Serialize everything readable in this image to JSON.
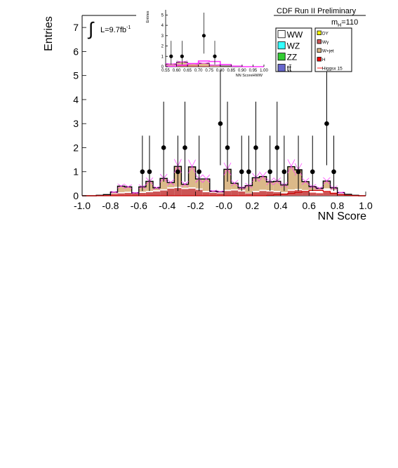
{
  "header": {
    "title": "CDF Run II Preliminary",
    "luminosity": "L=9.7fb",
    "luminosity_sup": "-1",
    "mass_label_main": "m",
    "mass_label_sub": "H",
    "mass_label_value": "=110"
  },
  "legend": {
    "left": [
      {
        "label": "WW",
        "color": "#ffffff"
      },
      {
        "label": "WZ",
        "color": "#33ffff"
      },
      {
        "label": "ZZ",
        "color": "#33cc33"
      },
      {
        "label": "tt̄",
        "color": "#6666cc"
      }
    ],
    "right": [
      {
        "label": "DY",
        "color": "#ffff00"
      },
      {
        "label": "Wγ",
        "color": "#cc5555"
      },
      {
        "label": "W+jet",
        "color": "#dbb989"
      },
      {
        "label": "H",
        "color": "#ff0000"
      },
      {
        "label": "Higgsx 15",
        "color": "#ff2222",
        "line": true
      }
    ]
  },
  "chart_data": [
    {
      "type": "bar",
      "title": "",
      "xlabel": "NN Score",
      "ylabel": "Entries",
      "xlim": [
        -1.0,
        1.0
      ],
      "ylim": [
        0,
        7.5
      ],
      "x_ticks": [
        "-1.0",
        "-0.8",
        "-0.6",
        "-0.4",
        "-0.2",
        "-0.0",
        "0.2",
        "0.4",
        "0.6",
        "0.8",
        "1.0"
      ],
      "x_tick_values": [
        -1.0,
        -0.8,
        -0.6,
        -0.4,
        -0.2,
        0.0,
        0.2,
        0.4,
        0.6,
        0.8,
        1.0
      ],
      "y_ticks": [
        "0",
        "1",
        "2",
        "3",
        "4",
        "5",
        "6",
        "7"
      ],
      "y_tick_values": [
        0,
        1,
        2,
        3,
        4,
        5,
        6,
        7
      ],
      "bin_edges": [
        -1.0,
        -0.95,
        -0.9,
        -0.85,
        -0.8,
        -0.75,
        -0.7,
        -0.65,
        -0.6,
        -0.55,
        -0.5,
        -0.45,
        -0.4,
        -0.35,
        -0.3,
        -0.25,
        -0.2,
        -0.15,
        -0.1,
        -0.05,
        0.0,
        0.05,
        0.1,
        0.15,
        0.2,
        0.25,
        0.3,
        0.35,
        0.4,
        0.45,
        0.5,
        0.55,
        0.6,
        0.65,
        0.7,
        0.75,
        0.8,
        0.85,
        0.9,
        0.95,
        1.0
      ],
      "series": [
        {
          "name": "Wγ",
          "color": "#cc5555",
          "values": [
            0,
            0,
            0.02,
            0.05,
            0.08,
            0.1,
            0.12,
            0.1,
            0.12,
            0.15,
            0.18,
            0.22,
            0.3,
            0.32,
            0.28,
            0.3,
            0.25,
            0.15,
            0.12,
            0.1,
            0.2,
            0.22,
            0.18,
            0.1,
            0.15,
            0.2,
            0.18,
            0.15,
            0.1,
            0.2,
            0.22,
            0.18,
            0.12,
            0.1,
            0.15,
            0.12,
            0.08,
            0.04,
            0.02,
            0
          ]
        },
        {
          "name": "H",
          "color": "#ff0000",
          "values": [
            0,
            0,
            0,
            0,
            0,
            0,
            0,
            0,
            0,
            0,
            0,
            0,
            0,
            0,
            0,
            0,
            0,
            0,
            0,
            0,
            0,
            0,
            0,
            0,
            0,
            0,
            0,
            0,
            0,
            0.01,
            0.01,
            0.01,
            0.01,
            0.01,
            0.01,
            0.01,
            0,
            0,
            0,
            0
          ]
        },
        {
          "name": "WW",
          "color": "#ffffff",
          "values": [
            0,
            0,
            0,
            0,
            0.02,
            0.05,
            0.05,
            0.02,
            0.05,
            0.05,
            0.05,
            0.05,
            0.05,
            0.05,
            0.05,
            0.05,
            0.05,
            0.05,
            0.02,
            0.02,
            0.05,
            0.05,
            0.05,
            0.02,
            0.05,
            0.05,
            0.05,
            0.05,
            0.05,
            0.05,
            0.05,
            0.05,
            0.1,
            0.1,
            0.15,
            0.12,
            0.05,
            0.02,
            0,
            0
          ]
        },
        {
          "name": "W+jet",
          "color": "#dbb989",
          "values": [
            0,
            0,
            0,
            0,
            0.05,
            0.25,
            0.2,
            0,
            0.2,
            0.4,
            0.1,
            0.45,
            0.2,
            0.85,
            0.15,
            0.85,
            0.4,
            0.5,
            0.05,
            0.05,
            0.85,
            0.25,
            0.1,
            0.3,
            0.55,
            0.55,
            0.35,
            0.4,
            0.3,
            0.95,
            0.8,
            0.35,
            0.15,
            0.1,
            0.3,
            0.08,
            0,
            0,
            0,
            0
          ]
        }
      ],
      "higgs_x15": [
        0,
        0,
        0,
        0,
        0,
        0,
        0,
        0,
        0,
        0,
        0,
        0,
        0,
        0,
        0,
        0,
        0,
        0,
        0,
        0,
        0,
        0,
        0,
        0,
        0,
        0,
        0.02,
        0.04,
        0.06,
        0.1,
        0.14,
        0.18,
        0.22,
        0.22,
        0.18,
        0.1,
        0.04,
        0.02,
        0,
        0
      ],
      "data_points": [
        {
          "x": -0.575,
          "y": 1
        },
        {
          "x": -0.525,
          "y": 1
        },
        {
          "x": -0.425,
          "y": 2
        },
        {
          "x": -0.325,
          "y": 1
        },
        {
          "x": -0.275,
          "y": 2
        },
        {
          "x": -0.175,
          "y": 1
        },
        {
          "x": -0.025,
          "y": 3
        },
        {
          "x": 0.025,
          "y": 2
        },
        {
          "x": 0.125,
          "y": 1
        },
        {
          "x": 0.175,
          "y": 1
        },
        {
          "x": 0.225,
          "y": 2
        },
        {
          "x": 0.325,
          "y": 1
        },
        {
          "x": 0.375,
          "y": 2
        },
        {
          "x": 0.425,
          "y": 1
        },
        {
          "x": 0.525,
          "y": 1
        },
        {
          "x": 0.625,
          "y": 1
        },
        {
          "x": 0.725,
          "y": 3
        },
        {
          "x": 0.775,
          "y": 1
        }
      ]
    },
    {
      "type": "bar",
      "title": "",
      "xlabel": "NN ScoreHWW",
      "ylabel": "Entries",
      "xlim": [
        0.55,
        1.0
      ],
      "ylim": [
        0,
        5.5
      ],
      "x_ticks": [
        "0.55",
        "0.60",
        "0.65",
        "0.70",
        "0.75",
        "0.80",
        "0.85",
        "0.90",
        "0.95",
        "1.00"
      ],
      "x_tick_values": [
        0.55,
        0.6,
        0.65,
        0.7,
        0.75,
        0.8,
        0.85,
        0.9,
        0.95,
        1.0
      ],
      "y_ticks": [
        "0",
        "1",
        "2",
        "3",
        "4",
        "5"
      ],
      "y_tick_values": [
        0,
        1,
        2,
        3,
        4,
        5
      ],
      "bin_edges": [
        0.55,
        0.6,
        0.65,
        0.7,
        0.75,
        0.8,
        0.85,
        0.9,
        0.95,
        1.0
      ],
      "series": [
        {
          "name": "Wγ",
          "color": "#cc5555",
          "values": [
            0.1,
            0.15,
            0.12,
            0.08,
            0.05,
            0.02,
            0,
            0,
            0
          ]
        },
        {
          "name": "W+jet",
          "color": "#dbb989",
          "values": [
            0.15,
            0.3,
            0.15,
            0.25,
            0.1,
            0.05,
            0,
            0,
            0
          ]
        }
      ],
      "higgs_x15": [
        0.05,
        0.15,
        0.3,
        0.55,
        0.5,
        0.2,
        0.05,
        0,
        0
      ],
      "data_points": [
        {
          "x": 0.575,
          "y": 1
        },
        {
          "x": 0.625,
          "y": 1
        },
        {
          "x": 0.725,
          "y": 3
        },
        {
          "x": 0.775,
          "y": 1
        }
      ]
    }
  ]
}
